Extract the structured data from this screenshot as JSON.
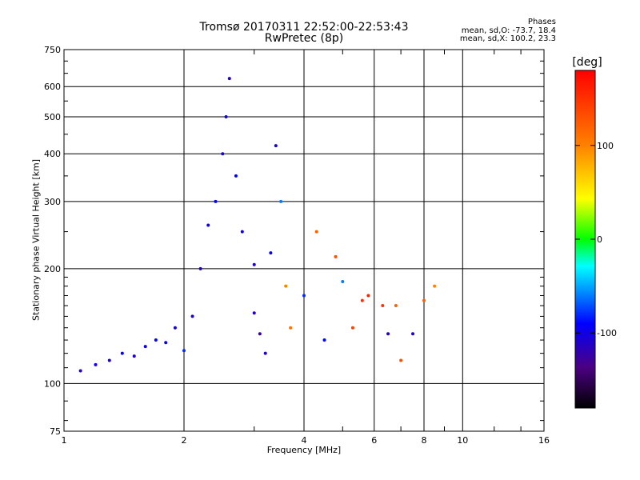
{
  "chart_data": {
    "type": "scatter",
    "title": "Tromsø 20170311 22:52:00-22:53:43",
    "subtitle": "RwPretec (8p)",
    "xlabel": "Frequency [MHz]",
    "ylabel": "Stationary phase Virtual Height [km]",
    "x_scale": "log",
    "y_scale": "log",
    "xlim": [
      1,
      16
    ],
    "ylim": [
      75,
      750
    ],
    "x_ticks": [
      "1",
      "2",
      "4",
      "6",
      "8",
      "10",
      "16"
    ],
    "y_ticks": [
      "75",
      "100",
      "200",
      "300",
      "400",
      "500",
      "600",
      "750"
    ],
    "grid": true,
    "phase_header": "Phases",
    "phase_stats_o": "mean, sd,O: -73.7, 18.4",
    "phase_stats_x": "mean, sd,X: 100.2, 23.3",
    "colorbar": {
      "label": "[deg]",
      "range": [
        -180,
        180
      ],
      "ticks": [
        "100",
        "0",
        "-100"
      ]
    },
    "points": [
      {
        "x": 1.1,
        "y": 108,
        "phase": -110
      },
      {
        "x": 1.2,
        "y": 112,
        "phase": -100
      },
      {
        "x": 1.3,
        "y": 115,
        "phase": -105
      },
      {
        "x": 1.4,
        "y": 120,
        "phase": -95
      },
      {
        "x": 1.5,
        "y": 118,
        "phase": -110
      },
      {
        "x": 1.6,
        "y": 125,
        "phase": -100
      },
      {
        "x": 1.7,
        "y": 130,
        "phase": -90
      },
      {
        "x": 1.8,
        "y": 128,
        "phase": -95
      },
      {
        "x": 1.9,
        "y": 140,
        "phase": -100
      },
      {
        "x": 2.0,
        "y": 122,
        "phase": -80
      },
      {
        "x": 2.1,
        "y": 150,
        "phase": -105
      },
      {
        "x": 2.2,
        "y": 200,
        "phase": -110
      },
      {
        "x": 2.3,
        "y": 260,
        "phase": -100
      },
      {
        "x": 2.4,
        "y": 300,
        "phase": -95
      },
      {
        "x": 2.5,
        "y": 400,
        "phase": -105
      },
      {
        "x": 2.55,
        "y": 500,
        "phase": -100
      },
      {
        "x": 2.6,
        "y": 630,
        "phase": -110
      },
      {
        "x": 2.7,
        "y": 350,
        "phase": -90
      },
      {
        "x": 2.8,
        "y": 250,
        "phase": -100
      },
      {
        "x": 3.0,
        "y": 205,
        "phase": -110
      },
      {
        "x": 3.0,
        "y": 153,
        "phase": -115
      },
      {
        "x": 3.1,
        "y": 135,
        "phase": -120
      },
      {
        "x": 3.2,
        "y": 120,
        "phase": -110
      },
      {
        "x": 3.3,
        "y": 220,
        "phase": -95
      },
      {
        "x": 3.4,
        "y": 420,
        "phase": -105
      },
      {
        "x": 3.5,
        "y": 300,
        "phase": -60
      },
      {
        "x": 3.6,
        "y": 180,
        "phase": 100
      },
      {
        "x": 3.7,
        "y": 140,
        "phase": 110
      },
      {
        "x": 4.0,
        "y": 170,
        "phase": -80
      },
      {
        "x": 4.3,
        "y": 250,
        "phase": 120
      },
      {
        "x": 4.5,
        "y": 130,
        "phase": -90
      },
      {
        "x": 4.8,
        "y": 215,
        "phase": 130
      },
      {
        "x": 5.0,
        "y": 185,
        "phase": -60
      },
      {
        "x": 5.3,
        "y": 140,
        "phase": 140
      },
      {
        "x": 5.6,
        "y": 165,
        "phase": 150
      },
      {
        "x": 5.8,
        "y": 170,
        "phase": 160
      },
      {
        "x": 6.3,
        "y": 160,
        "phase": 150
      },
      {
        "x": 6.5,
        "y": 135,
        "phase": -110
      },
      {
        "x": 6.8,
        "y": 160,
        "phase": 120
      },
      {
        "x": 7.0,
        "y": 115,
        "phase": 130
      },
      {
        "x": 7.5,
        "y": 135,
        "phase": -110
      },
      {
        "x": 8.0,
        "y": 165,
        "phase": 120
      },
      {
        "x": 8.5,
        "y": 180,
        "phase": 100
      }
    ]
  }
}
